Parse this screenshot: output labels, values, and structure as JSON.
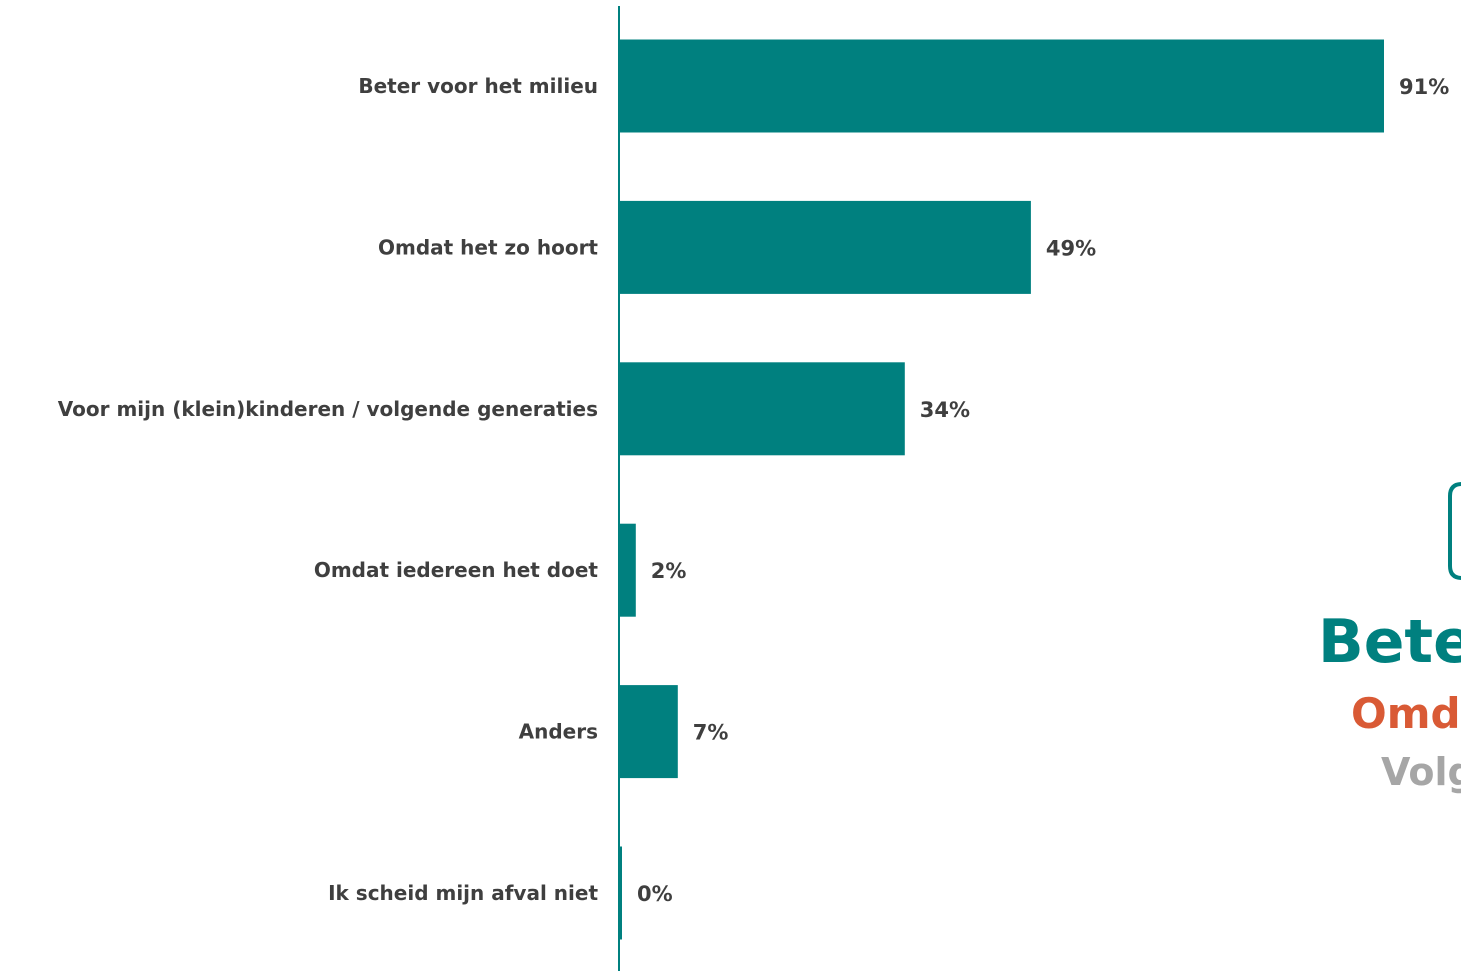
{
  "chart_data": {
    "type": "bar",
    "orientation": "horizontal",
    "categories": [
      "Beter voor het milieu",
      "Omdat het zo hoort",
      "Voor mijn (klein)kinderen / volgende generaties",
      "Omdat iedereen het doet",
      "Anders",
      "Ik scheid mijn afval niet"
    ],
    "values": [
      91,
      49,
      34,
      2,
      7,
      0
    ],
    "value_labels": [
      "91%",
      "49%",
      "34%",
      "2%",
      "7%",
      "0%"
    ],
    "unit": "%",
    "title": "",
    "xlabel": "",
    "ylabel": "",
    "xlim": [
      0,
      100
    ],
    "grid": false,
    "legend": "none",
    "bar_color": "#00807f",
    "axis_color": "#00807f",
    "label_color": "#3f3f3f"
  },
  "overlay": {
    "lines": [
      {
        "text": "Bete",
        "color": "#00807f"
      },
      {
        "text": "Omd",
        "color": "#d95a35"
      },
      {
        "text": "Volg",
        "color": "#a6a6a6"
      }
    ],
    "frame_color": "#00807f"
  }
}
